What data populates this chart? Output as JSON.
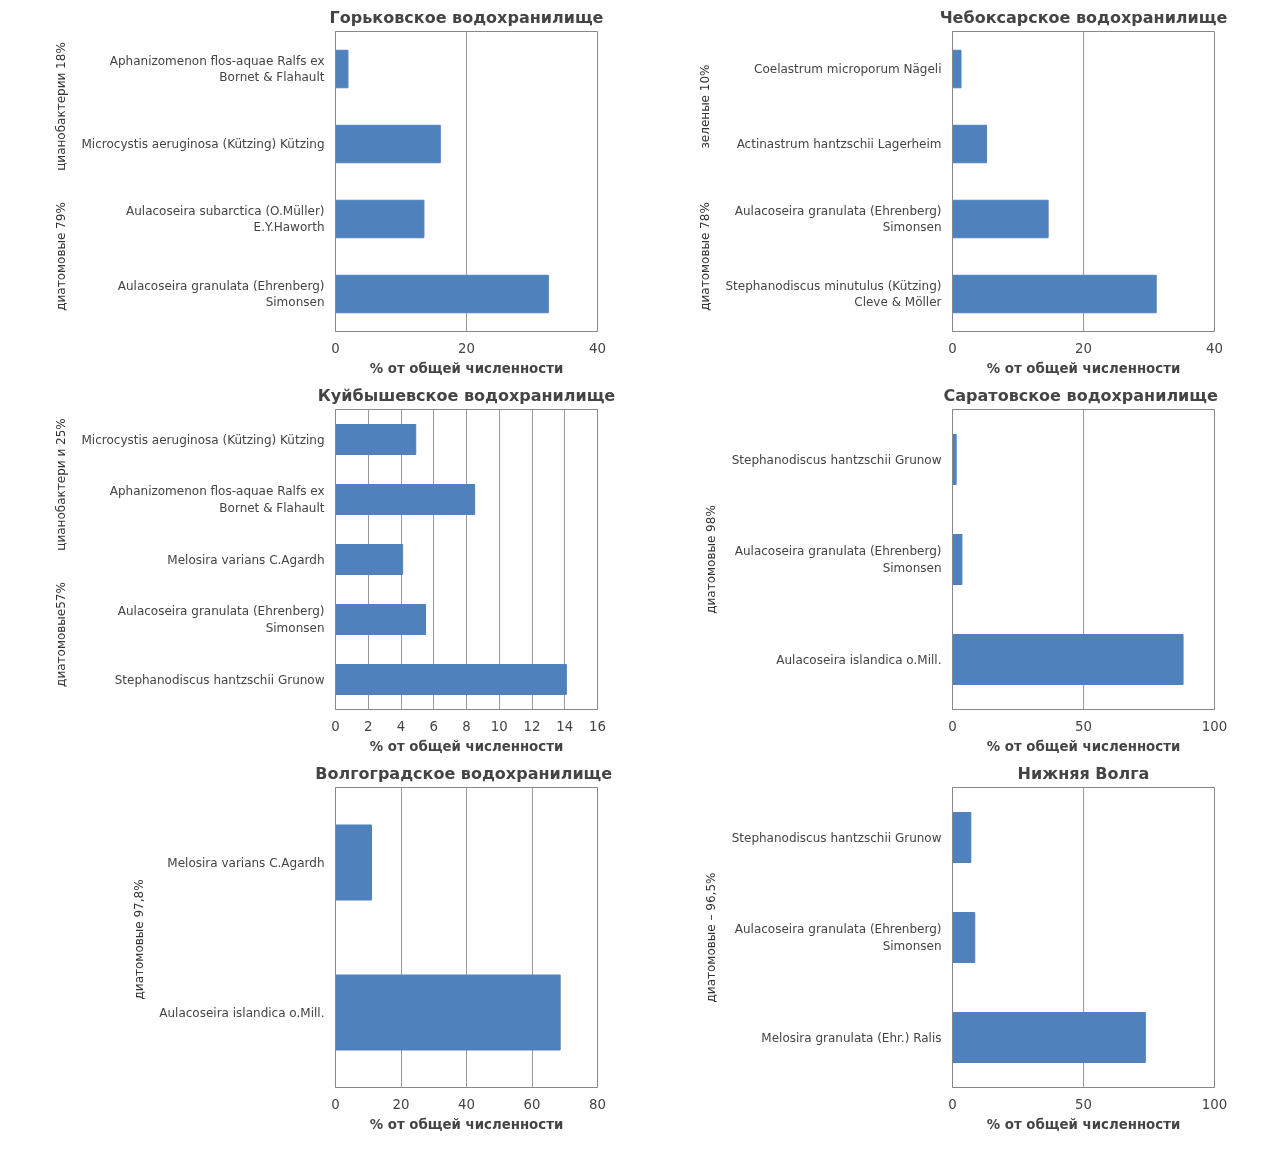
{
  "chart_data": [
    {
      "type": "bar",
      "orientation": "horizontal",
      "title": "Горьковское водохранилище",
      "xlabel": "% от общей численности",
      "categories": [
        "Aphanizomenon flos-aquae Ralfs ex Bornet & Flahault",
        "Microcystis aeruginosa (Kützing) Kützing",
        "Aulacoseira subarctica (O.Müller) E.Y.Haworth",
        "Aulacoseira granulata (Ehrenberg) Simonsen"
      ],
      "values": [
        1.9,
        16,
        13.5,
        32.5
      ],
      "color": "#4f81bd",
      "xlim": [
        0,
        40
      ],
      "xticks": [
        0,
        20,
        40
      ],
      "grid": "x",
      "annotations": [
        "цианобактерии 18%",
        "диатомовые 79%"
      ]
    },
    {
      "type": "bar",
      "orientation": "horizontal",
      "title": "Чебоксарское водохранилище",
      "xlabel": "% от общей численности",
      "categories": [
        "Coelastrum microporum Nägeli",
        "Actinastrum hantzschii Lagerheim",
        "Aulacoseira granulata (Ehrenberg) Simonsen",
        "Stephanodiscus minutulus (Kützing) Cleve & Möller"
      ],
      "values": [
        1.3,
        5.2,
        14.6,
        31.1
      ],
      "color": "#4f81bd",
      "xlim": [
        0,
        40
      ],
      "xticks": [
        0,
        20,
        40
      ],
      "grid": "x",
      "annotations": [
        "зеленые 10%",
        "диатомовые 78%"
      ]
    },
    {
      "type": "bar",
      "orientation": "horizontal",
      "title": "Куйбышевское водохранилище",
      "xlabel": "% от общей численности",
      "categories": [
        "Microcystis aeruginosa (Kützing) Kützing",
        "Aphanizomenon flos-aquae Ralfs ex Bornet & Flahault",
        "Melosira varians C.Agardh",
        "Aulacoseira granulata (Ehrenberg) Simonsen",
        "Stephanodiscus hantzschii Grunow"
      ],
      "values": [
        4.9,
        8.5,
        4.1,
        5.5,
        14.1
      ],
      "color": "#4f81bd",
      "xlim": [
        0,
        16
      ],
      "xticks": [
        0,
        2,
        4,
        6,
        8,
        10,
        12,
        14,
        16
      ],
      "grid": "x",
      "annotations": [
        "цианобактери и 25%",
        "диатомовые57%"
      ]
    },
    {
      "type": "bar",
      "orientation": "horizontal",
      "title": "Саратовское  водохранилище",
      "xlabel": "% от общей численности",
      "categories": [
        "Stephanodiscus hantzschii Grunow",
        "Aulacoseira granulata (Ehrenberg) Simonsen",
        "Aulacoseira islandica o.Mill."
      ],
      "values": [
        1.4,
        3.6,
        88
      ],
      "color": "#4f81bd",
      "xlim": [
        0,
        100
      ],
      "xticks": [
        0,
        50,
        100
      ],
      "grid": "x",
      "annotations": [
        "диатомовые 98%"
      ]
    },
    {
      "type": "bar",
      "orientation": "horizontal",
      "title": "Волгоградское  водохранилище",
      "xlabel": "% от общей численности",
      "categories": [
        "Melosira varians C.Agardh",
        "Aulacoseira islandica o.Mill."
      ],
      "values": [
        11,
        68.6
      ],
      "color": "#4f81bd",
      "xlim": [
        0,
        80
      ],
      "xticks": [
        0,
        20,
        40,
        60,
        80
      ],
      "grid": "x",
      "annotations": [
        "диатомовые  97,8%"
      ]
    },
    {
      "type": "bar",
      "orientation": "horizontal",
      "title": "Нижняя Волга",
      "xlabel": "% от общей численности",
      "categories": [
        "Stephanodiscus hantzschii Grunow",
        "Aulacoseira granulata (Ehrenberg) Simonsen",
        "Melosira granulata (Ehr.) Ralis"
      ],
      "values": [
        7,
        8.5,
        73.6
      ],
      "color": "#4f81bd",
      "xlim": [
        0,
        100
      ],
      "xticks": [
        0,
        50,
        100
      ],
      "grid": "x",
      "annotations": [
        "диатомовые – 96,5%"
      ]
    }
  ]
}
